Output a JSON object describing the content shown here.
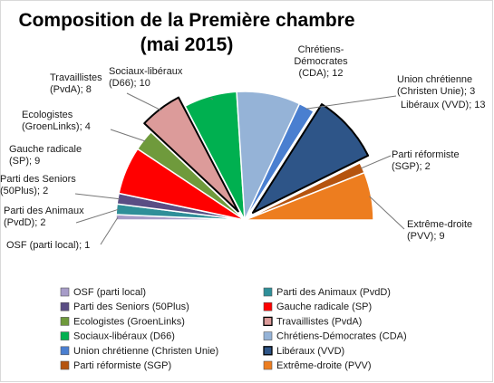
{
  "chart_data": {
    "type": "pie",
    "title_lines": [
      "Composition de la Première chambre",
      "(mai 2015)"
    ],
    "total": 75,
    "series": [
      {
        "name": "OSF (parti local)",
        "value": 1,
        "color": "#a79cc8",
        "exploded": false,
        "label_lines": [
          "OSF (parti local); 1"
        ]
      },
      {
        "name": "Parti des Animaux (PvdD)",
        "value": 2,
        "color": "#2f8f99",
        "exploded": false,
        "label_lines": [
          "Parti des Animaux",
          "(PvdD); 2"
        ]
      },
      {
        "name": "Parti des Seniors (50Plus)",
        "value": 2,
        "color": "#5a4d84",
        "exploded": false,
        "label_lines": [
          "Parti des Seniors",
          "(50Plus); 2"
        ]
      },
      {
        "name": "Gauche radicale (SP)",
        "value": 9,
        "color": "#ff0000",
        "exploded": false,
        "label_lines": [
          "Gauche radicale",
          "(SP); 9"
        ]
      },
      {
        "name": "Ecologistes (GroenLinks)",
        "value": 4,
        "color": "#6f9a3c",
        "exploded": false,
        "label_lines": [
          "Ecologistes",
          "(GroenLinks); 4"
        ]
      },
      {
        "name": "Travaillistes (PvdA)",
        "value": 8,
        "color": "#dc9b9a",
        "exploded": true,
        "label_lines": [
          "Travaillistes",
          "(PvdA); 8"
        ]
      },
      {
        "name": "Sociaux-libéraux (D66)",
        "value": 10,
        "color": "#00b050",
        "exploded": false,
        "label_lines": [
          "Sociaux-libéraux",
          "(D66); 10"
        ]
      },
      {
        "name": "Chrétiens-Démocrates (CDA)",
        "value": 12,
        "color": "#95b3d7",
        "exploded": false,
        "label_lines": [
          "Chrétiens-",
          "Démocrates",
          "(CDA); 12"
        ]
      },
      {
        "name": "Union chrétienne (Christen Unie)",
        "value": 3,
        "color": "#4a7fd0",
        "exploded": false,
        "label_lines": [
          "Union chrétienne",
          "(Christen Unie); 3"
        ]
      },
      {
        "name": "Libéraux (VVD)",
        "value": 13,
        "color": "#2e5588",
        "exploded": true,
        "label_lines": [
          "Libéraux (VVD); 13"
        ]
      },
      {
        "name": "Parti réformiste (SGP)",
        "value": 2,
        "color": "#b5540f",
        "exploded": false,
        "label_lines": [
          "Parti réformiste",
          "(SGP); 2"
        ]
      },
      {
        "name": "Extrême-droite (PVV)",
        "value": 9,
        "color": "#ed7d1f",
        "exploded": false,
        "label_lines": [
          "Extrême-droite",
          "(PVV); 9"
        ]
      }
    ],
    "legend_position": "bottom"
  }
}
